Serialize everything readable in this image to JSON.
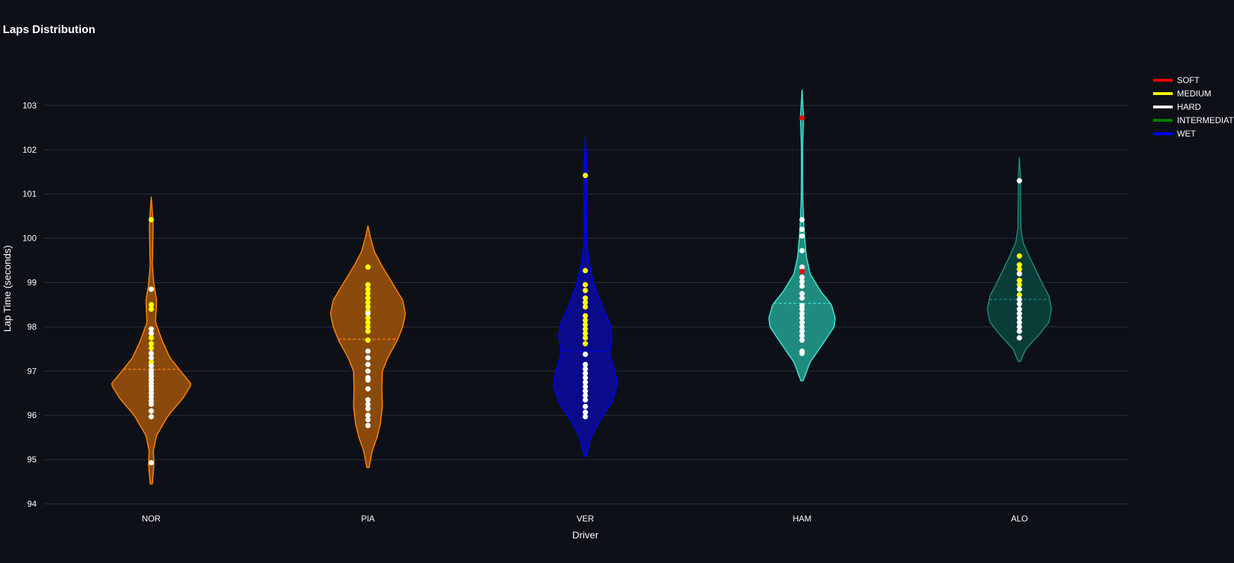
{
  "chart_data": {
    "type": "violin",
    "title": "Laps Distribution",
    "xlabel": "Driver",
    "ylabel": "Lap Time (seconds)",
    "ylim": [
      94,
      103.9
    ],
    "yticks": [
      94,
      95,
      96,
      97,
      98,
      99,
      100,
      101,
      102,
      103
    ],
    "grid": true,
    "legend_position": "top-right",
    "background": "#0d1117",
    "legend": [
      {
        "label": "SOFT",
        "color": "#ff0000"
      },
      {
        "label": "MEDIUM",
        "color": "#ffff00"
      },
      {
        "label": "HARD",
        "color": "#ffffff"
      },
      {
        "label": "INTERMEDIATE",
        "color": "#008000"
      },
      {
        "label": "WET",
        "color": "#0000ff"
      }
    ],
    "categories": [
      "NOR",
      "PIA",
      "VER",
      "HAM",
      "ALO"
    ],
    "series": [
      {
        "category": "NOR",
        "line_color": "#ff8000",
        "fill_color": "#8a4a0c",
        "mean": 97.04,
        "span": [
          94.45,
          100.93
        ],
        "profile": [
          [
            94.45,
            0.02
          ],
          [
            94.9,
            0.05
          ],
          [
            95.2,
            0.04
          ],
          [
            95.55,
            0.1
          ],
          [
            96.0,
            0.32
          ],
          [
            96.4,
            0.6
          ],
          [
            96.7,
            0.75
          ],
          [
            97.0,
            0.55
          ],
          [
            97.3,
            0.35
          ],
          [
            97.7,
            0.2
          ],
          [
            98.1,
            0.08
          ],
          [
            98.6,
            0.1
          ],
          [
            98.95,
            0.05
          ],
          [
            99.4,
            0.02
          ],
          [
            99.9,
            0.03
          ],
          [
            100.3,
            0.035
          ],
          [
            100.6,
            0.02
          ],
          [
            100.93,
            0.0
          ]
        ],
        "laps": [
          {
            "t": 100.42,
            "c": "MEDIUM"
          },
          {
            "t": 98.85,
            "c": "HARD"
          },
          {
            "t": 98.5,
            "c": "MEDIUM"
          },
          {
            "t": 98.4,
            "c": "MEDIUM"
          },
          {
            "t": 97.95,
            "c": "HARD"
          },
          {
            "t": 97.85,
            "c": "HARD"
          },
          {
            "t": 97.75,
            "c": "MEDIUM"
          },
          {
            "t": 97.62,
            "c": "MEDIUM"
          },
          {
            "t": 97.52,
            "c": "MEDIUM"
          },
          {
            "t": 97.4,
            "c": "HARD"
          },
          {
            "t": 97.3,
            "c": "HARD"
          },
          {
            "t": 97.2,
            "c": "MEDIUM"
          },
          {
            "t": 97.12,
            "c": "HARD"
          },
          {
            "t": 97.02,
            "c": "HARD"
          },
          {
            "t": 96.95,
            "c": "HARD"
          },
          {
            "t": 96.88,
            "c": "HARD"
          },
          {
            "t": 96.8,
            "c": "HARD"
          },
          {
            "t": 96.72,
            "c": "HARD"
          },
          {
            "t": 96.65,
            "c": "HARD"
          },
          {
            "t": 96.58,
            "c": "HARD"
          },
          {
            "t": 96.5,
            "c": "HARD"
          },
          {
            "t": 96.42,
            "c": "HARD"
          },
          {
            "t": 96.33,
            "c": "HARD"
          },
          {
            "t": 96.25,
            "c": "HARD"
          },
          {
            "t": 96.1,
            "c": "HARD"
          },
          {
            "t": 95.97,
            "c": "HARD"
          },
          {
            "t": 94.93,
            "c": "HARD"
          }
        ]
      },
      {
        "category": "PIA",
        "line_color": "#ff8000",
        "fill_color": "#8a4a0c",
        "mean": 97.72,
        "span": [
          94.82,
          100.28
        ],
        "profile": [
          [
            94.82,
            0.02
          ],
          [
            95.2,
            0.08
          ],
          [
            95.5,
            0.17
          ],
          [
            95.8,
            0.23
          ],
          [
            96.2,
            0.27
          ],
          [
            96.6,
            0.26
          ],
          [
            97.0,
            0.27
          ],
          [
            97.3,
            0.37
          ],
          [
            97.7,
            0.55
          ],
          [
            98.0,
            0.65
          ],
          [
            98.3,
            0.7
          ],
          [
            98.6,
            0.65
          ],
          [
            99.0,
            0.45
          ],
          [
            99.4,
            0.25
          ],
          [
            99.7,
            0.12
          ],
          [
            100.0,
            0.05
          ],
          [
            100.28,
            0.0
          ]
        ],
        "laps": [
          {
            "t": 99.35,
            "c": "MEDIUM"
          },
          {
            "t": 98.95,
            "c": "MEDIUM"
          },
          {
            "t": 98.85,
            "c": "MEDIUM"
          },
          {
            "t": 98.75,
            "c": "MEDIUM"
          },
          {
            "t": 98.65,
            "c": "MEDIUM"
          },
          {
            "t": 98.55,
            "c": "MEDIUM"
          },
          {
            "t": 98.45,
            "c": "MEDIUM"
          },
          {
            "t": 98.35,
            "c": "MEDIUM"
          },
          {
            "t": 98.3,
            "c": "HARD"
          },
          {
            "t": 98.2,
            "c": "MEDIUM"
          },
          {
            "t": 98.1,
            "c": "MEDIUM"
          },
          {
            "t": 98.0,
            "c": "MEDIUM"
          },
          {
            "t": 97.9,
            "c": "MEDIUM"
          },
          {
            "t": 97.7,
            "c": "MEDIUM"
          },
          {
            "t": 97.45,
            "c": "HARD"
          },
          {
            "t": 97.3,
            "c": "HARD"
          },
          {
            "t": 97.15,
            "c": "HARD"
          },
          {
            "t": 97.0,
            "c": "HARD"
          },
          {
            "t": 96.85,
            "c": "HARD"
          },
          {
            "t": 96.8,
            "c": "HARD"
          },
          {
            "t": 96.6,
            "c": "HARD"
          },
          {
            "t": 96.35,
            "c": "HARD"
          },
          {
            "t": 96.25,
            "c": "HARD"
          },
          {
            "t": 96.15,
            "c": "HARD"
          },
          {
            "t": 96.0,
            "c": "HARD"
          },
          {
            "t": 95.9,
            "c": "HARD"
          },
          {
            "t": 95.77,
            "c": "HARD"
          }
        ]
      },
      {
        "category": "VER",
        "line_color": "#0000ff",
        "fill_color": "#0a0a8a",
        "mean": 97.45,
        "span": [
          95.08,
          102.28
        ],
        "profile": [
          [
            95.08,
            0.02
          ],
          [
            95.5,
            0.1
          ],
          [
            95.9,
            0.28
          ],
          [
            96.3,
            0.5
          ],
          [
            96.7,
            0.6
          ],
          [
            97.0,
            0.55
          ],
          [
            97.4,
            0.45
          ],
          [
            97.8,
            0.5
          ],
          [
            98.1,
            0.45
          ],
          [
            98.5,
            0.3
          ],
          [
            99.0,
            0.15
          ],
          [
            99.5,
            0.06
          ],
          [
            100.0,
            0.02
          ],
          [
            100.5,
            0.02
          ],
          [
            101.0,
            0.03
          ],
          [
            101.5,
            0.03
          ],
          [
            102.0,
            0.01
          ],
          [
            102.28,
            0.0
          ]
        ],
        "laps": [
          {
            "t": 101.42,
            "c": "MEDIUM"
          },
          {
            "t": 99.27,
            "c": "MEDIUM"
          },
          {
            "t": 98.95,
            "c": "MEDIUM"
          },
          {
            "t": 98.82,
            "c": "MEDIUM"
          },
          {
            "t": 98.65,
            "c": "MEDIUM"
          },
          {
            "t": 98.55,
            "c": "MEDIUM"
          },
          {
            "t": 98.45,
            "c": "MEDIUM"
          },
          {
            "t": 98.25,
            "c": "MEDIUM"
          },
          {
            "t": 98.15,
            "c": "MEDIUM"
          },
          {
            "t": 98.05,
            "c": "MEDIUM"
          },
          {
            "t": 97.95,
            "c": "MEDIUM"
          },
          {
            "t": 97.85,
            "c": "MEDIUM"
          },
          {
            "t": 97.75,
            "c": "MEDIUM"
          },
          {
            "t": 97.62,
            "c": "MEDIUM"
          },
          {
            "t": 97.38,
            "c": "HARD"
          },
          {
            "t": 97.15,
            "c": "HARD"
          },
          {
            "t": 97.05,
            "c": "HARD"
          },
          {
            "t": 96.95,
            "c": "HARD"
          },
          {
            "t": 96.85,
            "c": "HARD"
          },
          {
            "t": 96.75,
            "c": "HARD"
          },
          {
            "t": 96.65,
            "c": "HARD"
          },
          {
            "t": 96.55,
            "c": "HARD"
          },
          {
            "t": 96.45,
            "c": "HARD"
          },
          {
            "t": 96.35,
            "c": "HARD"
          },
          {
            "t": 96.2,
            "c": "HARD"
          },
          {
            "t": 96.07,
            "c": "HARD"
          },
          {
            "t": 95.97,
            "c": "HARD"
          }
        ]
      },
      {
        "category": "HAM",
        "line_color": "#40e0d0",
        "fill_color": "#1f8b7f",
        "mean": 98.53,
        "span": [
          96.78,
          103.35
        ],
        "profile": [
          [
            96.78,
            0.02
          ],
          [
            97.2,
            0.15
          ],
          [
            97.6,
            0.38
          ],
          [
            98.0,
            0.6
          ],
          [
            98.2,
            0.62
          ],
          [
            98.5,
            0.55
          ],
          [
            98.8,
            0.35
          ],
          [
            99.2,
            0.15
          ],
          [
            99.6,
            0.08
          ],
          [
            100.0,
            0.05
          ],
          [
            100.4,
            0.03
          ],
          [
            100.9,
            0.015
          ],
          [
            101.5,
            0.01
          ],
          [
            102.0,
            0.01
          ],
          [
            102.4,
            0.02
          ],
          [
            102.75,
            0.03
          ],
          [
            103.0,
            0.015
          ],
          [
            103.35,
            0.0
          ]
        ],
        "laps": [
          {
            "t": 102.72,
            "c": "SOFT"
          },
          {
            "t": 100.42,
            "c": "HARD"
          },
          {
            "t": 100.2,
            "c": "HARD"
          },
          {
            "t": 100.05,
            "c": "HARD"
          },
          {
            "t": 99.72,
            "c": "HARD"
          },
          {
            "t": 99.35,
            "c": "HARD"
          },
          {
            "t": 99.25,
            "c": "SOFT"
          },
          {
            "t": 99.12,
            "c": "HARD"
          },
          {
            "t": 99.02,
            "c": "HARD"
          },
          {
            "t": 98.92,
            "c": "HARD"
          },
          {
            "t": 98.75,
            "c": "HARD"
          },
          {
            "t": 98.65,
            "c": "HARD"
          },
          {
            "t": 98.48,
            "c": "HARD"
          },
          {
            "t": 98.4,
            "c": "HARD"
          },
          {
            "t": 98.3,
            "c": "HARD"
          },
          {
            "t": 98.2,
            "c": "HARD"
          },
          {
            "t": 98.1,
            "c": "HARD"
          },
          {
            "t": 98.0,
            "c": "HARD"
          },
          {
            "t": 97.9,
            "c": "HARD"
          },
          {
            "t": 97.8,
            "c": "HARD"
          },
          {
            "t": 97.7,
            "c": "HARD"
          },
          {
            "t": 97.45,
            "c": "HARD"
          },
          {
            "t": 97.4,
            "c": "HARD"
          }
        ]
      },
      {
        "category": "ALO",
        "line_color": "#20847a",
        "fill_color": "#0b3d38",
        "mean": 98.62,
        "span": [
          97.22,
          101.82
        ],
        "profile": [
          [
            97.22,
            0.02
          ],
          [
            97.5,
            0.12
          ],
          [
            97.8,
            0.35
          ],
          [
            98.1,
            0.55
          ],
          [
            98.4,
            0.6
          ],
          [
            98.7,
            0.55
          ],
          [
            99.0,
            0.42
          ],
          [
            99.3,
            0.3
          ],
          [
            99.6,
            0.18
          ],
          [
            99.9,
            0.07
          ],
          [
            100.2,
            0.03
          ],
          [
            100.6,
            0.025
          ],
          [
            101.0,
            0.02
          ],
          [
            101.4,
            0.02
          ],
          [
            101.82,
            0.0
          ]
        ],
        "laps": [
          {
            "t": 101.3,
            "c": "HARD"
          },
          {
            "t": 99.6,
            "c": "MEDIUM"
          },
          {
            "t": 99.4,
            "c": "MEDIUM"
          },
          {
            "t": 99.3,
            "c": "MEDIUM"
          },
          {
            "t": 99.2,
            "c": "HARD"
          },
          {
            "t": 99.05,
            "c": "MEDIUM"
          },
          {
            "t": 98.95,
            "c": "MEDIUM"
          },
          {
            "t": 98.85,
            "c": "HARD"
          },
          {
            "t": 98.72,
            "c": "MEDIUM"
          },
          {
            "t": 98.62,
            "c": "HARD"
          },
          {
            "t": 98.52,
            "c": "HARD"
          },
          {
            "t": 98.4,
            "c": "HARD"
          },
          {
            "t": 98.3,
            "c": "HARD"
          },
          {
            "t": 98.2,
            "c": "HARD"
          },
          {
            "t": 98.1,
            "c": "HARD"
          },
          {
            "t": 98.0,
            "c": "HARD"
          },
          {
            "t": 97.9,
            "c": "HARD"
          },
          {
            "t": 97.75,
            "c": "HARD"
          }
        ]
      }
    ]
  }
}
